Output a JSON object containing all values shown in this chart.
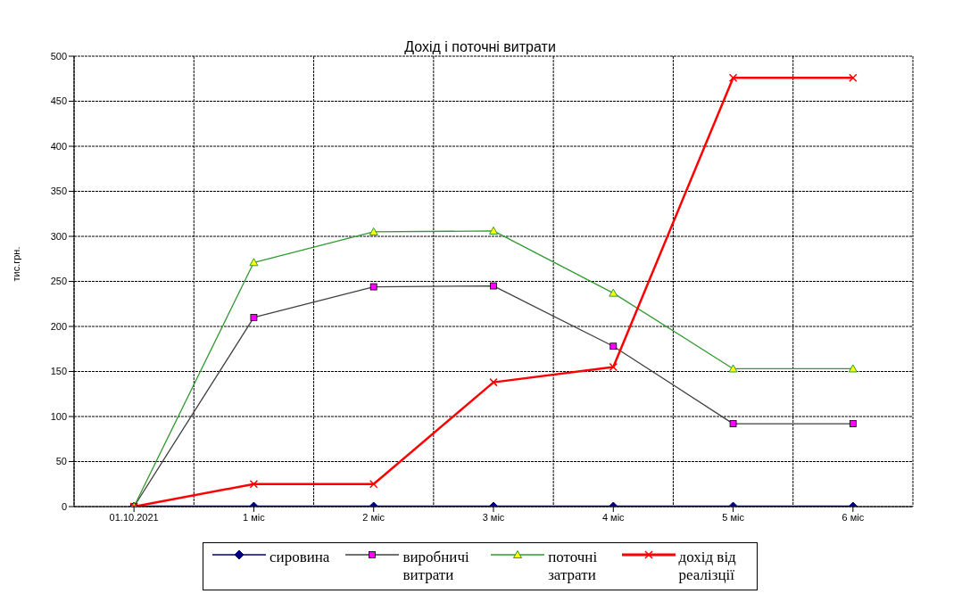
{
  "chart_data": {
    "type": "line",
    "title": "Дохід і поточні витрати",
    "ylabel": "тис.грн.",
    "categories": [
      "01.10.2021",
      "1 міс",
      "2 міс",
      "3 міс",
      "4 міс",
      "5 міс",
      "6 міс"
    ],
    "ylim": [
      0,
      500
    ],
    "yticks": [
      0,
      50,
      100,
      150,
      200,
      250,
      300,
      350,
      400,
      450,
      500
    ],
    "grid": true,
    "legend": "bottom",
    "series": [
      {
        "name": "сировина",
        "color": "#000080",
        "marker": "diamond",
        "values": [
          0,
          0,
          0,
          0,
          0,
          0,
          0
        ]
      },
      {
        "name": "виробничі витрати",
        "color": "#404040",
        "marker": "square",
        "values": [
          0,
          210,
          244,
          245,
          178,
          92,
          92
        ]
      },
      {
        "name": "поточні затрати",
        "color": "#339933",
        "marker": "triangle",
        "values": [
          0,
          271,
          305,
          306,
          237,
          153,
          153
        ]
      },
      {
        "name": "дохід від реалізції",
        "color": "#ff0000",
        "marker": "cross",
        "values": [
          0,
          25,
          25,
          138,
          155,
          476,
          476
        ]
      }
    ]
  }
}
